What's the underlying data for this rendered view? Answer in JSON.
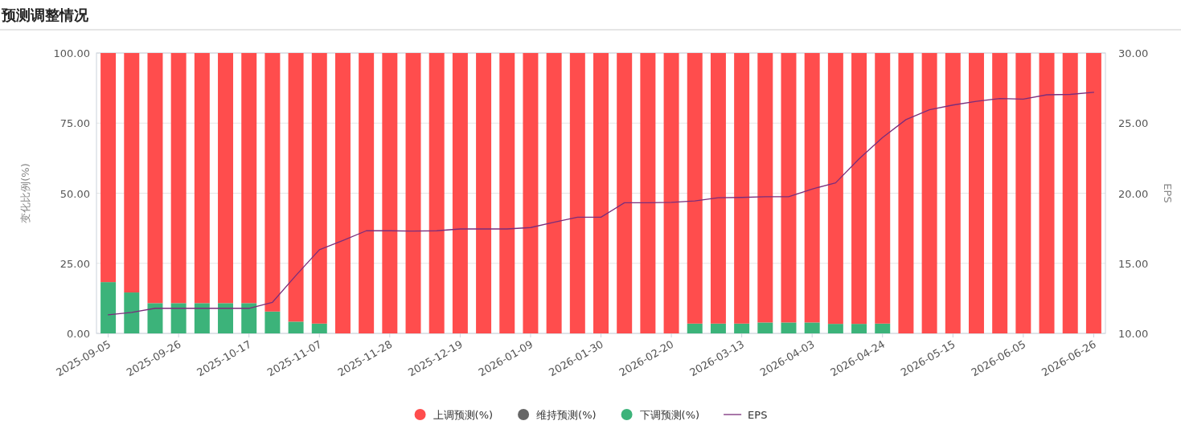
{
  "chart_data": {
    "type": "bar",
    "title": "预测调整情况",
    "ylabel": "变化比例(%)",
    "y2label": "EPS",
    "categories": [
      "2025-09-05",
      null,
      null,
      "2025-09-26",
      null,
      null,
      "2025-10-17",
      null,
      null,
      "2025-11-07",
      null,
      null,
      "2025-11-28",
      null,
      null,
      "2025-12-19",
      null,
      null,
      "2026-01-09",
      null,
      null,
      "2026-01-30",
      null,
      null,
      "2026-02-20",
      null,
      null,
      "2026-03-13",
      null,
      null,
      "2026-04-03",
      null,
      null,
      "2026-04-24",
      null,
      null,
      "2026-05-15",
      null,
      null,
      "2026-06-05",
      null,
      null,
      "2026-06-26"
    ],
    "series": [
      {
        "name": "下调预测(%)",
        "color": "#3cb37a",
        "values": [
          18.3,
          14.6,
          10.8,
          10.8,
          10.8,
          10.8,
          10.8,
          7.8,
          4.2,
          3.5,
          0,
          0,
          0,
          0,
          0,
          0,
          0,
          0,
          0,
          0,
          0,
          0,
          0,
          0,
          0,
          3.5,
          3.5,
          3.5,
          3.9,
          3.9,
          3.9,
          3.4,
          3.4,
          3.5,
          0,
          0,
          0,
          0,
          0,
          0,
          0,
          0,
          0
        ]
      },
      {
        "name": "维持预测(%)",
        "color": "#666666",
        "values": [
          0,
          0,
          0,
          0,
          0,
          0,
          0,
          0,
          0,
          0,
          0,
          0,
          0,
          0,
          0,
          0,
          0,
          0,
          0,
          0,
          0,
          0,
          0,
          0,
          0,
          0,
          0,
          0,
          0,
          0,
          0,
          0,
          0,
          0,
          0,
          0,
          0,
          0,
          0,
          0,
          0,
          0,
          0
        ]
      },
      {
        "name": "上调预测(%)",
        "color": "#ff4d4d",
        "values": [
          81.7,
          85.4,
          89.2,
          89.2,
          89.2,
          89.2,
          89.2,
          92.2,
          95.8,
          96.5,
          100,
          100,
          100,
          100,
          100,
          100,
          100,
          100,
          100,
          100,
          100,
          100,
          100,
          100,
          100,
          96.5,
          96.5,
          96.5,
          96.1,
          96.1,
          96.1,
          96.6,
          96.6,
          96.5,
          100,
          100,
          100,
          100,
          100,
          100,
          100,
          100,
          100
        ]
      },
      {
        "name": "EPS",
        "type": "line",
        "axis": "y2",
        "color": "#7b2d7b",
        "values": [
          11.33,
          11.5,
          11.79,
          11.79,
          11.79,
          11.79,
          11.79,
          12.22,
          14.13,
          15.97,
          16.63,
          17.32,
          17.32,
          17.3,
          17.32,
          17.45,
          17.45,
          17.45,
          17.55,
          17.93,
          18.29,
          18.29,
          19.32,
          19.32,
          19.35,
          19.45,
          19.68,
          19.7,
          19.75,
          19.75,
          20.3,
          20.74,
          22.45,
          23.97,
          25.25,
          25.95,
          26.29,
          26.56,
          26.75,
          26.71,
          27.02,
          27.05,
          27.2
        ]
      }
    ],
    "stacked": true,
    "ylim": [
      0,
      100
    ],
    "yticks": [
      {
        "value": 0,
        "label": "0.00"
      },
      {
        "value": 25,
        "label": "25.00"
      },
      {
        "value": 50,
        "label": "50.00"
      },
      {
        "value": 75,
        "label": "75.00"
      },
      {
        "value": 100,
        "label": "100.00"
      }
    ],
    "y2lim": [
      10,
      30
    ],
    "y2ticks": [
      {
        "value": 10,
        "label": "10.00"
      },
      {
        "value": 15,
        "label": "15.00"
      },
      {
        "value": 20,
        "label": "20.00"
      },
      {
        "value": 25,
        "label": "25.00"
      },
      {
        "value": 30,
        "label": "30.00"
      }
    ],
    "grid": "y",
    "legend": "bottom"
  }
}
